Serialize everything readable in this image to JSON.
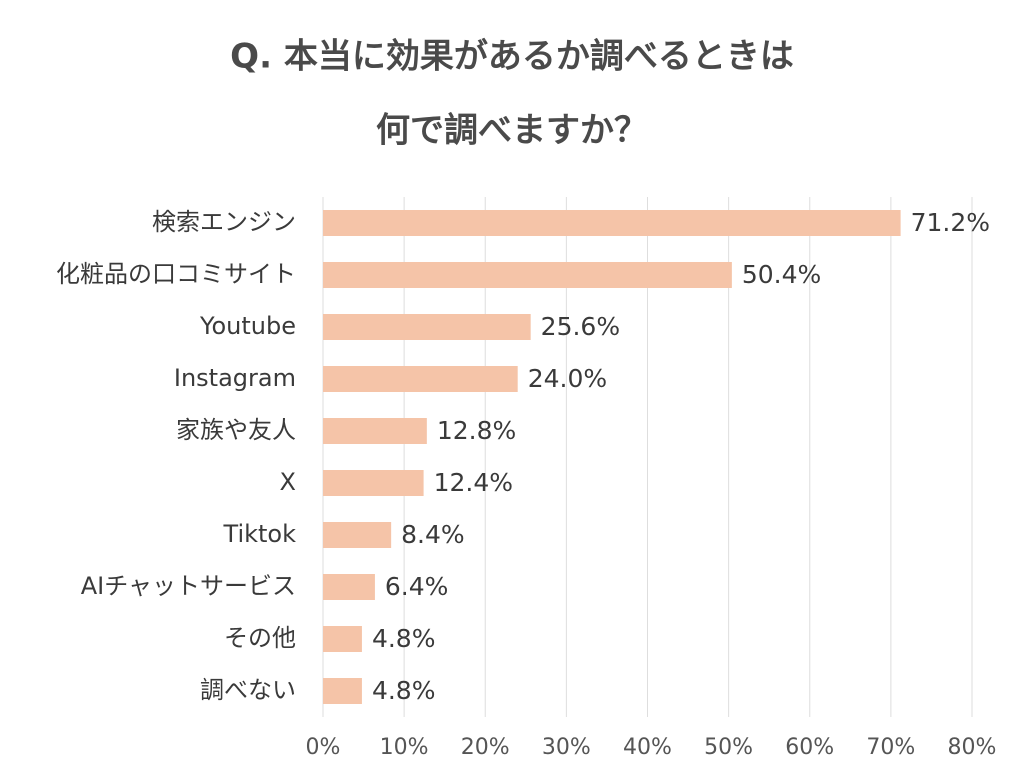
{
  "chart_data": {
    "type": "bar",
    "orientation": "horizontal",
    "title": [
      "Q. 本当に効果があるか調べるときは",
      "何で調べますか？"
    ],
    "categories": [
      "検索エンジン",
      "化粧品の口コミサイト",
      "Youtube",
      "Instagram",
      "家族や友人",
      "X",
      "Tiktok",
      "AIチャットサービス",
      "その他",
      "調べない"
    ],
    "values": [
      71.2,
      50.4,
      25.6,
      24.0,
      12.8,
      12.4,
      8.4,
      6.4,
      4.8,
      4.8
    ],
    "value_labels": [
      "71.2%",
      "50.4%",
      "25.6%",
      "24.0%",
      "12.8%",
      "12.4%",
      "8.4%",
      "6.4%",
      "4.8%",
      "4.8%"
    ],
    "color": "#f5c4a8",
    "xlim": [
      0,
      80
    ],
    "xticks": [
      {
        "value": 0,
        "label": "0%"
      },
      {
        "value": 10,
        "label": "10%"
      },
      {
        "value": 20,
        "label": "20%"
      },
      {
        "value": 30,
        "label": "30%"
      },
      {
        "value": 40,
        "label": "40%"
      },
      {
        "value": 50,
        "label": "50%"
      },
      {
        "value": 60,
        "label": "60%"
      },
      {
        "value": 70,
        "label": "70%"
      },
      {
        "value": 80,
        "label": "80%"
      }
    ],
    "grid": true
  }
}
